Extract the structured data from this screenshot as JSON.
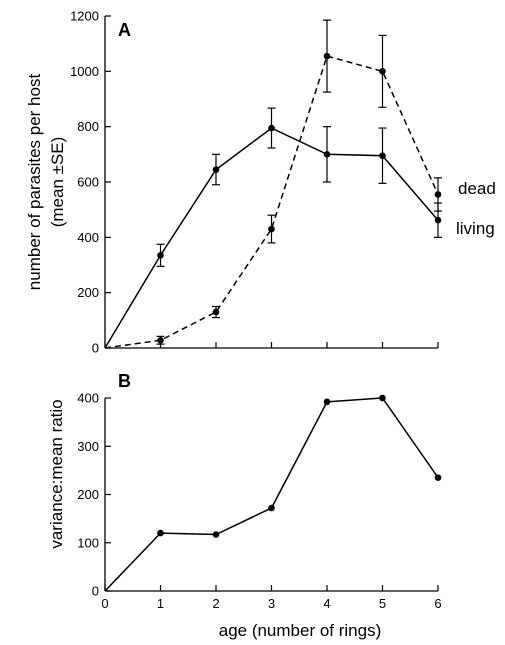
{
  "chart_data": [
    {
      "panel_label": "A",
      "type": "line",
      "ylabel_line1": "number of parasites per host",
      "ylabel_line2": "(mean ±SE)",
      "xlabel": "",
      "xlim": [
        0,
        6
      ],
      "ylim": [
        0,
        1200
      ],
      "xticks": [
        0,
        1,
        2,
        3,
        4,
        5,
        6
      ],
      "yticks": [
        0,
        200,
        400,
        600,
        800,
        1000,
        1200
      ],
      "series": [
        {
          "name": "living",
          "style": "solid",
          "x": [
            0,
            1,
            2,
            3,
            4,
            5,
            6
          ],
          "y": [
            0,
            335,
            645,
            795,
            700,
            695,
            462
          ],
          "se": [
            0,
            40,
            55,
            72,
            100,
            100,
            62
          ]
        },
        {
          "name": "dead",
          "style": "dashed",
          "x": [
            0,
            1,
            2,
            3,
            4,
            5,
            6
          ],
          "y": [
            0,
            28,
            130,
            430,
            1055,
            1000,
            555
          ],
          "se": [
            0,
            14,
            20,
            50,
            130,
            130,
            60
          ]
        }
      ]
    },
    {
      "panel_label": "B",
      "type": "line",
      "ylabel": "variance:mean ratio",
      "xlabel": "age (number of rings)",
      "xlim": [
        0,
        6
      ],
      "ylim": [
        0,
        400
      ],
      "xticks": [
        0,
        1,
        2,
        3,
        4,
        5,
        6
      ],
      "yticks": [
        0,
        100,
        200,
        300,
        400
      ],
      "series": [
        {
          "style": "solid",
          "x": [
            0,
            1,
            2,
            3,
            4,
            5,
            6
          ],
          "y": [
            0,
            120,
            117,
            172,
            392,
            400,
            235
          ]
        }
      ]
    }
  ]
}
